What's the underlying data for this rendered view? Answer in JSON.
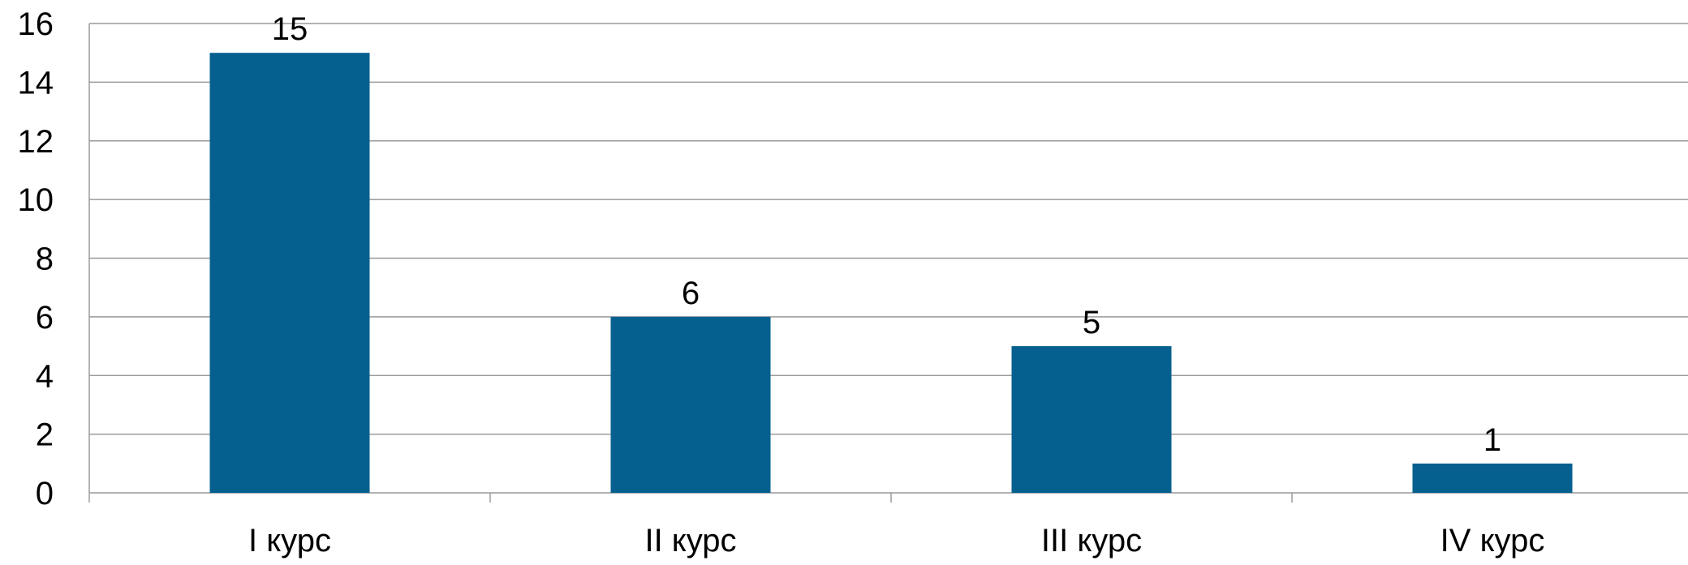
{
  "chart_data": {
    "type": "bar",
    "title": "",
    "xlabel": "",
    "ylabel": "",
    "categories": [
      "I курс",
      "II курс",
      "III курс",
      "IV курс"
    ],
    "values": [
      15,
      6,
      5,
      1
    ],
    "data_labels": [
      "15",
      "6",
      "5",
      "1"
    ],
    "ylim": [
      0,
      16
    ],
    "yticks": [
      "0",
      "2",
      "4",
      "6",
      "8",
      "10",
      "12",
      "14",
      "16"
    ],
    "grid": true,
    "legend": "none",
    "bar_color": "#05608f",
    "grid_color": "#9a9a9a"
  }
}
